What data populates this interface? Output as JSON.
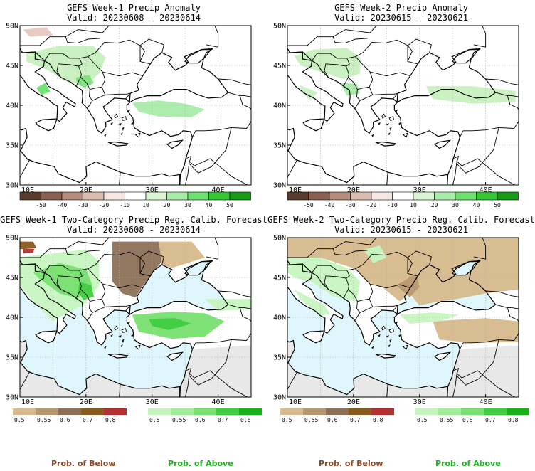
{
  "panels": [
    {
      "title": "GEFS Week-1 Precip Anomaly",
      "valid": "Valid: 20230608 - 20230614"
    },
    {
      "title": "GEFS Week-2 Precip Anomaly",
      "valid": "Valid: 20230615 - 20230621"
    },
    {
      "title": "GEFS Week-1 Two-Category Precip Reg. Calib. Forecast",
      "valid": "Valid: 20230608 - 20230614"
    },
    {
      "title": "GEFS Week-2 Two-Category Precip Reg. Calib. Forecast",
      "valid": "Valid: 20230615 - 20230621"
    }
  ],
  "lat_labels": [
    "50N",
    "45N",
    "40N",
    "35N",
    "30N"
  ],
  "lon_labels": [
    "10E",
    "20E",
    "30E",
    "40E"
  ],
  "anomaly_colorbar": {
    "labels": [
      "-50",
      "-40",
      "-30",
      "-20",
      "-10",
      "10",
      "20",
      "30",
      "40",
      "50"
    ],
    "colors": [
      "#5a3a2a",
      "#8a6050",
      "#b58c7c",
      "#dbbcb0",
      "#f4e6e0",
      "#ffffff",
      "#d9f5d2",
      "#a8ecaa",
      "#6ee070",
      "#34c734",
      "#169a16"
    ]
  },
  "below_colorbar": {
    "labels": [
      "0.5",
      "0.55",
      "0.6",
      "0.7",
      "0.8"
    ],
    "colors": [
      "#d6b98c",
      "#b89870",
      "#8c7058",
      "#8a5a1e",
      "#b03030"
    ]
  },
  "above_colorbar": {
    "labels": [
      "0.5",
      "0.55",
      "0.6",
      "0.7",
      "0.8"
    ],
    "colors": [
      "#c6f5c0",
      "#a0ee98",
      "#78e070",
      "#40cc40",
      "#18b018"
    ]
  },
  "footer": {
    "below": "Prob. of Below",
    "above": "Prob. of Above"
  },
  "colors": {
    "sea": "#dff6fc",
    "land_default": "#e8e8e8",
    "below_text": "#8a4a28",
    "above_text": "#20b020"
  }
}
